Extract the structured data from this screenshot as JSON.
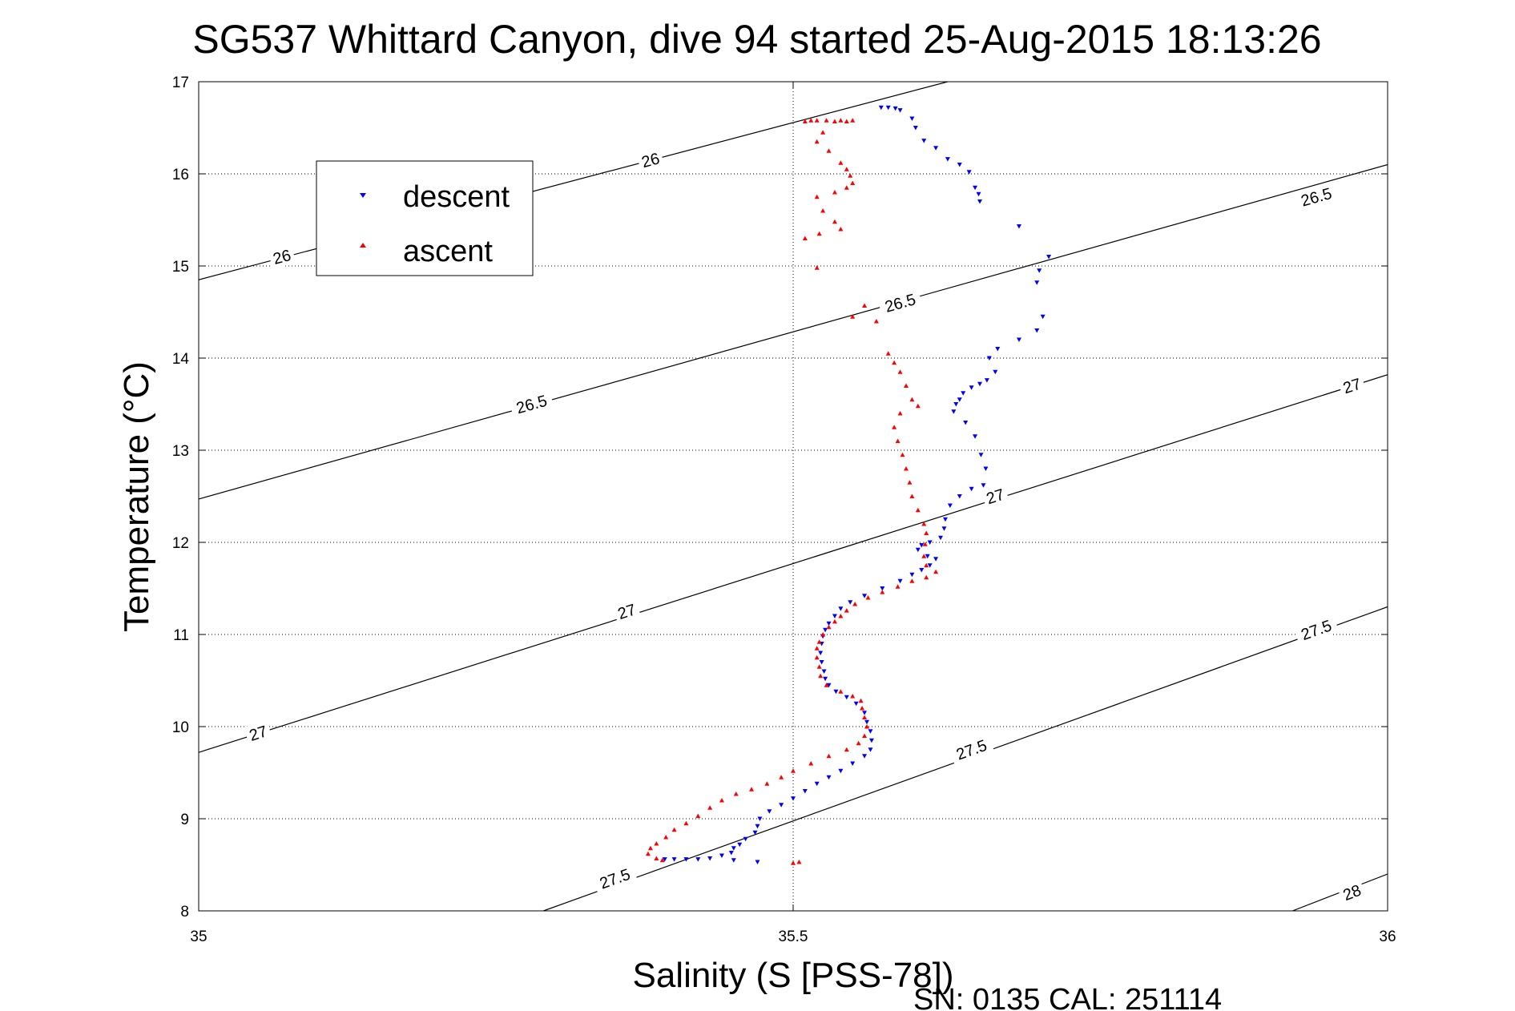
{
  "chart_data": {
    "type": "scatter",
    "title": "SG537 Whittard Canyon, dive 94 started 25-Aug-2015 18:13:26",
    "xlabel": "Salinity (S [PSS-78])",
    "ylabel": "Temperature (°C)",
    "xlim": [
      35,
      36
    ],
    "ylim": [
      8,
      17
    ],
    "x_ticks": [
      "35",
      "35.5",
      "36"
    ],
    "y_ticks": [
      "8",
      "9",
      "10",
      "11",
      "12",
      "13",
      "14",
      "15",
      "16",
      "17"
    ],
    "grid": true,
    "legend_placement": "upper-left",
    "footnote": "SN: 0135  CAL: 251114",
    "contours": [
      {
        "label": "26",
        "p1": [
          35,
          14.85
        ],
        "p2": [
          35.63,
          17.0
        ],
        "labels_at": [
          [
            35.07,
            15.1
          ],
          [
            35.38,
            16.15
          ]
        ]
      },
      {
        "label": "26.5",
        "p1": [
          35,
          12.47
        ],
        "p2": [
          36,
          16.1
        ],
        "labels_at": [
          [
            35.28,
            13.5
          ],
          [
            35.59,
            14.6
          ],
          [
            35.94,
            15.75
          ]
        ]
      },
      {
        "label": "27",
        "p1": [
          35,
          9.72
        ],
        "p2": [
          36,
          13.82
        ],
        "labels_at": [
          [
            35.05,
            9.93
          ],
          [
            35.36,
            11.25
          ],
          [
            35.67,
            12.5
          ],
          [
            35.97,
            13.7
          ]
        ]
      },
      {
        "label": "27.5",
        "p1": [
          35.29,
          8.0
        ],
        "p2": [
          36,
          11.3
        ],
        "labels_at": [
          [
            35.35,
            8.35
          ],
          [
            35.65,
            9.75
          ],
          [
            35.94,
            11.05
          ]
        ]
      },
      {
        "label": "28",
        "p1": [
          35.92,
          8.0
        ],
        "p2": [
          36,
          8.4
        ],
        "labels_at": [
          [
            35.97,
            8.2
          ]
        ]
      }
    ],
    "series": [
      {
        "name": "descent",
        "color": "#0000ff",
        "marker": "triangle-down",
        "points": [
          [
            35.574,
            16.72
          ],
          [
            35.58,
            16.72
          ],
          [
            35.586,
            16.71
          ],
          [
            35.59,
            16.69
          ],
          [
            35.6,
            16.6
          ],
          [
            35.603,
            16.5
          ],
          [
            35.61,
            16.36
          ],
          [
            35.62,
            16.28
          ],
          [
            35.63,
            16.16
          ],
          [
            35.64,
            16.1
          ],
          [
            35.648,
            16.02
          ],
          [
            35.653,
            15.85
          ],
          [
            35.656,
            15.78
          ],
          [
            35.657,
            15.7
          ],
          [
            35.69,
            15.43
          ],
          [
            35.715,
            15.1
          ],
          [
            35.707,
            14.95
          ],
          [
            35.705,
            14.82
          ],
          [
            35.71,
            14.45
          ],
          [
            35.705,
            14.3
          ],
          [
            35.69,
            14.2
          ],
          [
            35.672,
            14.1
          ],
          [
            35.665,
            14.0
          ],
          [
            35.67,
            13.85
          ],
          [
            35.663,
            13.76
          ],
          [
            35.657,
            13.72
          ],
          [
            35.65,
            13.68
          ],
          [
            35.643,
            13.62
          ],
          [
            35.64,
            13.55
          ],
          [
            35.637,
            13.5
          ],
          [
            35.635,
            13.42
          ],
          [
            35.645,
            13.3
          ],
          [
            35.653,
            13.15
          ],
          [
            35.658,
            12.95
          ],
          [
            35.662,
            12.8
          ],
          [
            35.66,
            12.62
          ],
          [
            35.65,
            12.58
          ],
          [
            35.64,
            12.5
          ],
          [
            35.632,
            12.4
          ],
          [
            35.628,
            12.25
          ],
          [
            35.627,
            12.15
          ],
          [
            35.624,
            12.05
          ],
          [
            35.615,
            12.0
          ],
          [
            35.608,
            11.97
          ],
          [
            35.605,
            11.92
          ],
          [
            35.613,
            11.85
          ],
          [
            35.62,
            11.82
          ],
          [
            35.615,
            11.75
          ],
          [
            35.608,
            11.7
          ],
          [
            35.6,
            11.65
          ],
          [
            35.59,
            11.58
          ],
          [
            35.575,
            11.5
          ],
          [
            35.56,
            11.42
          ],
          [
            35.548,
            11.35
          ],
          [
            35.54,
            11.28
          ],
          [
            35.535,
            11.2
          ],
          [
            35.53,
            11.12
          ],
          [
            35.527,
            11.05
          ],
          [
            35.525,
            10.98
          ],
          [
            35.524,
            10.9
          ],
          [
            35.523,
            10.8
          ],
          [
            35.524,
            10.7
          ],
          [
            35.526,
            10.6
          ],
          [
            35.527,
            10.52
          ],
          [
            35.53,
            10.45
          ],
          [
            35.536,
            10.38
          ],
          [
            35.545,
            10.32
          ],
          [
            35.553,
            10.25
          ],
          [
            35.56,
            10.15
          ],
          [
            35.562,
            10.05
          ],
          [
            35.565,
            9.95
          ],
          [
            35.566,
            9.85
          ],
          [
            35.565,
            9.75
          ],
          [
            35.56,
            9.68
          ],
          [
            35.55,
            9.6
          ],
          [
            35.54,
            9.52
          ],
          [
            35.53,
            9.45
          ],
          [
            35.52,
            9.38
          ],
          [
            35.51,
            9.3
          ],
          [
            35.5,
            9.22
          ],
          [
            35.49,
            9.15
          ],
          [
            35.48,
            9.08
          ],
          [
            35.472,
            9.0
          ],
          [
            35.47,
            8.92
          ],
          [
            35.468,
            8.85
          ],
          [
            35.46,
            8.78
          ],
          [
            35.455,
            8.72
          ],
          [
            35.45,
            8.68
          ],
          [
            35.448,
            8.63
          ],
          [
            35.44,
            8.6
          ],
          [
            35.43,
            8.57
          ],
          [
            35.42,
            8.56
          ],
          [
            35.41,
            8.56
          ],
          [
            35.4,
            8.56
          ],
          [
            35.392,
            8.56
          ],
          [
            35.45,
            8.55
          ],
          [
            35.47,
            8.53
          ]
        ]
      },
      {
        "name": "ascent",
        "color": "#ff0000",
        "marker": "triangle-up",
        "points": [
          [
            35.51,
            16.57
          ],
          [
            35.515,
            16.58
          ],
          [
            35.52,
            16.58
          ],
          [
            35.528,
            16.58
          ],
          [
            35.535,
            16.57
          ],
          [
            35.54,
            16.58
          ],
          [
            35.545,
            16.57
          ],
          [
            35.55,
            16.58
          ],
          [
            35.525,
            16.45
          ],
          [
            35.52,
            16.35
          ],
          [
            35.53,
            16.25
          ],
          [
            35.54,
            16.12
          ],
          [
            35.545,
            16.05
          ],
          [
            35.548,
            15.98
          ],
          [
            35.55,
            15.9
          ],
          [
            35.545,
            15.85
          ],
          [
            35.535,
            15.8
          ],
          [
            35.52,
            15.75
          ],
          [
            35.525,
            15.6
          ],
          [
            35.535,
            15.48
          ],
          [
            35.54,
            15.4
          ],
          [
            35.522,
            15.35
          ],
          [
            35.51,
            15.3
          ],
          [
            35.52,
            14.98
          ],
          [
            35.56,
            14.57
          ],
          [
            35.55,
            14.45
          ],
          [
            35.57,
            14.4
          ],
          [
            35.58,
            14.05
          ],
          [
            35.585,
            13.95
          ],
          [
            35.59,
            13.85
          ],
          [
            35.595,
            13.7
          ],
          [
            35.6,
            13.55
          ],
          [
            35.605,
            13.48
          ],
          [
            35.59,
            13.4
          ],
          [
            35.585,
            13.25
          ],
          [
            35.588,
            13.1
          ],
          [
            35.592,
            12.95
          ],
          [
            35.595,
            12.8
          ],
          [
            35.598,
            12.65
          ],
          [
            35.6,
            12.5
          ],
          [
            35.605,
            12.35
          ],
          [
            35.61,
            12.2
          ],
          [
            35.612,
            12.1
          ],
          [
            35.611,
            11.98
          ],
          [
            35.61,
            11.85
          ],
          [
            35.612,
            11.75
          ],
          [
            35.62,
            11.68
          ],
          [
            35.612,
            11.62
          ],
          [
            35.6,
            11.58
          ],
          [
            35.588,
            11.52
          ],
          [
            35.575,
            11.46
          ],
          [
            35.563,
            11.4
          ],
          [
            35.552,
            11.33
          ],
          [
            35.545,
            11.26
          ],
          [
            35.54,
            11.2
          ],
          [
            35.535,
            11.14
          ],
          [
            35.53,
            11.08
          ],
          [
            35.525,
            11.0
          ],
          [
            35.522,
            10.92
          ],
          [
            35.52,
            10.85
          ],
          [
            35.52,
            10.75
          ],
          [
            35.522,
            10.65
          ],
          [
            35.523,
            10.55
          ],
          [
            35.528,
            10.45
          ],
          [
            35.54,
            10.38
          ],
          [
            35.55,
            10.33
          ],
          [
            35.557,
            10.28
          ],
          [
            35.558,
            10.2
          ],
          [
            35.56,
            10.1
          ],
          [
            35.562,
            10.0
          ],
          [
            35.56,
            9.9
          ],
          [
            35.555,
            9.82
          ],
          [
            35.545,
            9.75
          ],
          [
            35.53,
            9.68
          ],
          [
            35.515,
            9.6
          ],
          [
            35.5,
            9.52
          ],
          [
            35.49,
            9.45
          ],
          [
            35.478,
            9.38
          ],
          [
            35.465,
            9.32
          ],
          [
            35.452,
            9.27
          ],
          [
            35.44,
            9.2
          ],
          [
            35.43,
            9.12
          ],
          [
            35.42,
            9.03
          ],
          [
            35.41,
            8.95
          ],
          [
            35.4,
            8.88
          ],
          [
            35.393,
            8.8
          ],
          [
            35.385,
            8.73
          ],
          [
            35.38,
            8.68
          ],
          [
            35.378,
            8.62
          ],
          [
            35.385,
            8.57
          ],
          [
            35.39,
            8.55
          ],
          [
            35.5,
            8.52
          ],
          [
            35.505,
            8.53
          ]
        ]
      }
    ]
  }
}
